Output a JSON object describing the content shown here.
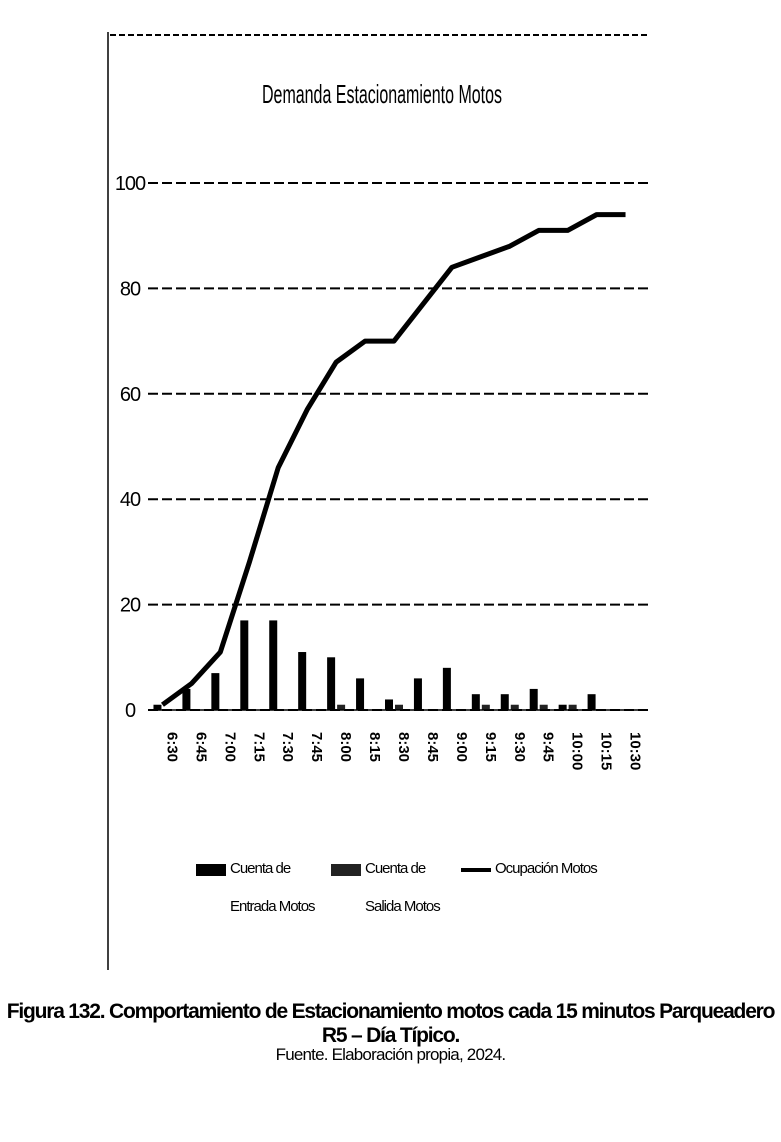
{
  "chart_data": {
    "type": "bar",
    "title": "Demanda Estacionamiento Motos",
    "categories": [
      "6:30",
      "6:45",
      "7:00",
      "7:15",
      "7:30",
      "7:45",
      "8:00",
      "8:15",
      "8:30",
      "8:45",
      "9:00",
      "9:15",
      "9:30",
      "9:45",
      "10:00",
      "10:15",
      "10:30"
    ],
    "series": [
      {
        "name": "Cuenta de Entrada Motos",
        "color": "#000000",
        "type": "bar",
        "values": [
          1,
          4,
          7,
          17,
          17,
          11,
          10,
          6,
          2,
          6,
          8,
          3,
          3,
          4,
          1,
          3,
          0
        ]
      },
      {
        "name": "Cuenta de Salida Motos",
        "color": "#222222",
        "type": "bar",
        "values": [
          0,
          0,
          0,
          0,
          0,
          0,
          1,
          0,
          1,
          0,
          0,
          1,
          1,
          1,
          1,
          0,
          0
        ]
      },
      {
        "name": "Ocupación Motos",
        "color": "#000000",
        "type": "line",
        "values": [
          1,
          5,
          11,
          28,
          46,
          57,
          66,
          70,
          70,
          77,
          84,
          86,
          88,
          91,
          91,
          94,
          94
        ]
      }
    ],
    "ylim": [
      0,
      100
    ],
    "yticks": [
      0,
      20,
      40,
      60,
      80,
      100
    ],
    "grid": true
  },
  "caption": "Figura 132. Comportamiento de Estacionamiento motos cada 15 minutos Parqueadero R5 – Día Típico.",
  "source": "Fuente. Elaboración propia, 2024."
}
